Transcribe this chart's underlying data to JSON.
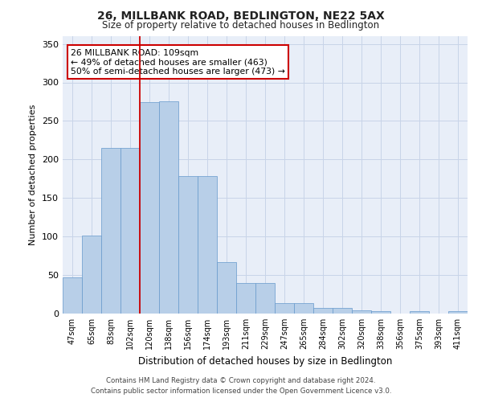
{
  "title": "26, MILLBANK ROAD, BEDLINGTON, NE22 5AX",
  "subtitle": "Size of property relative to detached houses in Bedlington",
  "xlabel": "Distribution of detached houses by size in Bedlington",
  "ylabel": "Number of detached properties",
  "categories": [
    "47sqm",
    "65sqm",
    "83sqm",
    "102sqm",
    "120sqm",
    "138sqm",
    "156sqm",
    "174sqm",
    "193sqm",
    "211sqm",
    "229sqm",
    "247sqm",
    "265sqm",
    "284sqm",
    "302sqm",
    "320sqm",
    "338sqm",
    "356sqm",
    "375sqm",
    "393sqm",
    "411sqm"
  ],
  "values": [
    47,
    101,
    215,
    215,
    274,
    275,
    178,
    178,
    67,
    40,
    40,
    14,
    14,
    7,
    7,
    4,
    3,
    0,
    3,
    0,
    3
  ],
  "bar_color": "#b8cfe8",
  "bar_edge_color": "#6699cc",
  "grid_color": "#c8d4e8",
  "background_color": "#e8eef8",
  "annotation_box_text": "26 MILLBANK ROAD: 109sqm\n← 49% of detached houses are smaller (463)\n50% of semi-detached houses are larger (473) →",
  "annotation_box_color": "#ffffff",
  "annotation_box_edge_color": "#cc0000",
  "redline_bar_index": 3,
  "ylim": [
    0,
    360
  ],
  "yticks": [
    0,
    50,
    100,
    150,
    200,
    250,
    300,
    350
  ],
  "footer_line1": "Contains HM Land Registry data © Crown copyright and database right 2024.",
  "footer_line2": "Contains public sector information licensed under the Open Government Licence v3.0."
}
